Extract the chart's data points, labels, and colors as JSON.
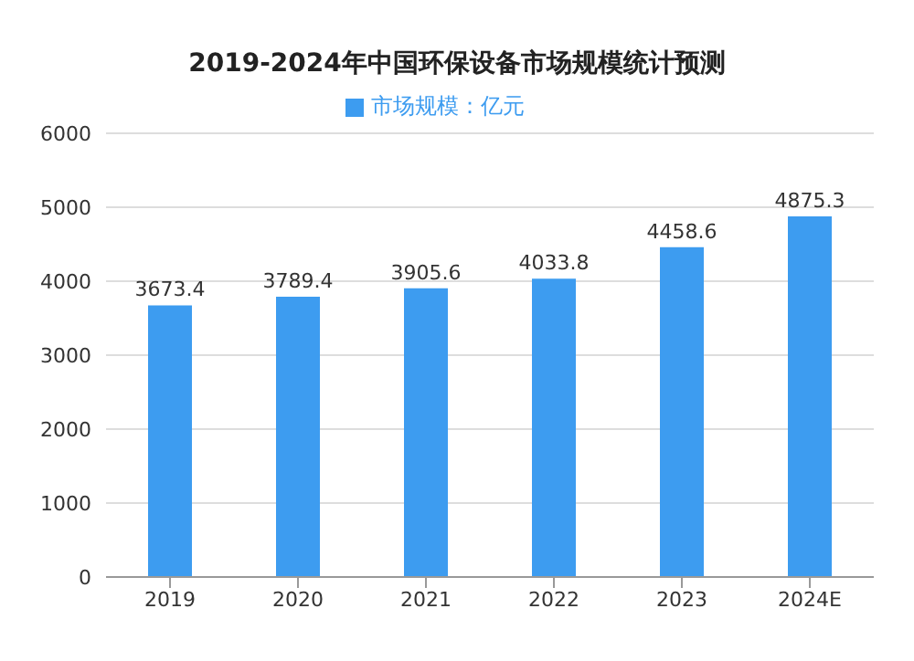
{
  "chart_data": {
    "type": "bar",
    "title": "2019-2024年中国环保设备市场规模统计预测",
    "categories": [
      "2019",
      "2020",
      "2021",
      "2022",
      "2023",
      "2024E"
    ],
    "series": [
      {
        "name": "市场规模：亿元",
        "color": "#3d9cf0",
        "values": [
          3673.4,
          3789.4,
          3905.6,
          4033.8,
          4458.6,
          4875.3
        ]
      }
    ],
    "ylim": [
      0,
      6000
    ],
    "yticks": [
      0,
      1000,
      2000,
      3000,
      4000,
      5000,
      6000
    ],
    "grid": "y",
    "legend": "top",
    "data_labels": true
  }
}
